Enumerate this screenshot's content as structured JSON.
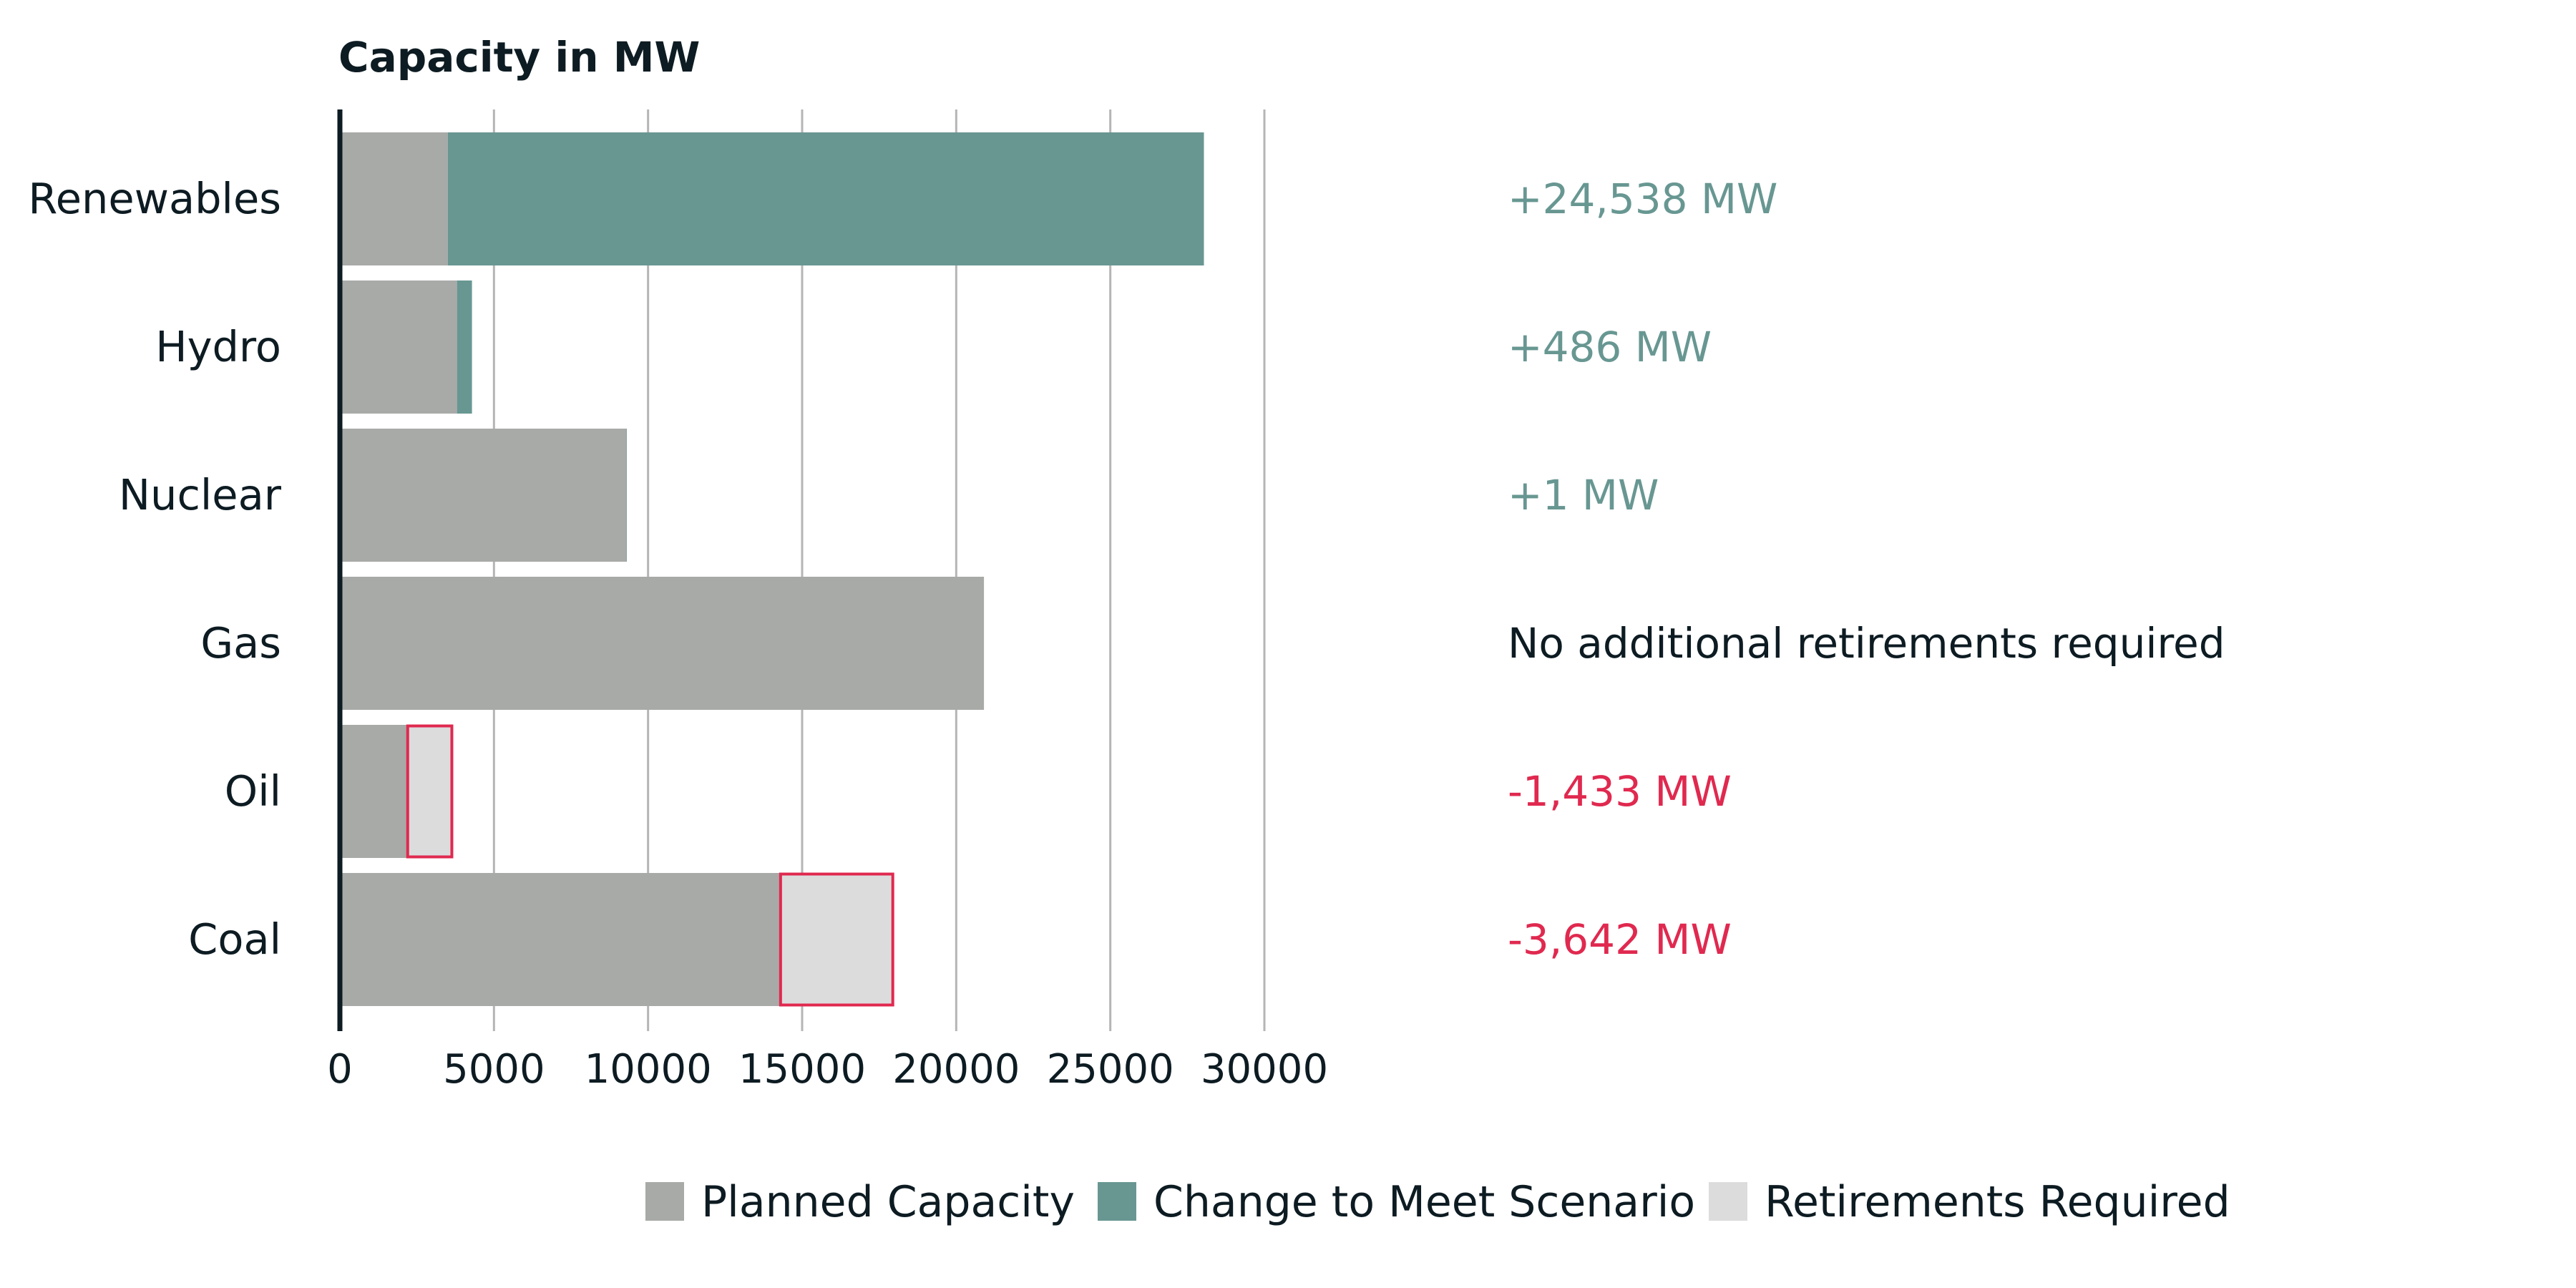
{
  "chart_data": {
    "type": "bar",
    "orientation": "horizontal",
    "stacked": true,
    "title": "Capacity in MW",
    "categories": [
      "Renewables",
      "Hydro",
      "Nuclear",
      "Gas",
      "Oil",
      "Coal"
    ],
    "series": [
      {
        "name": "Planned Capacity",
        "values": [
          3500,
          3800,
          9300,
          20900,
          2200,
          14300
        ]
      },
      {
        "name": "Change to Meet Scenario",
        "values": [
          24538,
          486,
          1,
          0,
          0,
          0
        ]
      },
      {
        "name": "Retirements Required",
        "values": [
          0,
          0,
          0,
          0,
          1433,
          3642
        ]
      }
    ],
    "annotations": [
      "+24,538 MW",
      "+486 MW",
      "+1 MW",
      "No additional retirements required",
      "-1,433 MW",
      "-3,642 MW"
    ],
    "annotation_kinds": [
      "increase",
      "increase",
      "increase",
      "neutral",
      "decrease",
      "decrease"
    ],
    "xticks": [
      "0",
      "5000",
      "10000",
      "15000",
      "20000",
      "25000",
      "30000"
    ],
    "xlim": [
      0,
      30000
    ],
    "grid": true,
    "legend_position": "bottom",
    "colors": {
      "planned": "#a8aaa7",
      "change": "#689792",
      "retire_fill": "#dcdcdd",
      "retire_border": "#e0294f",
      "increase_text": "#689792",
      "decrease_text": "#e0294f",
      "neutral_text": "#0d1b22",
      "grid": "#b5b5b5",
      "axis": "#0d1b22"
    }
  }
}
